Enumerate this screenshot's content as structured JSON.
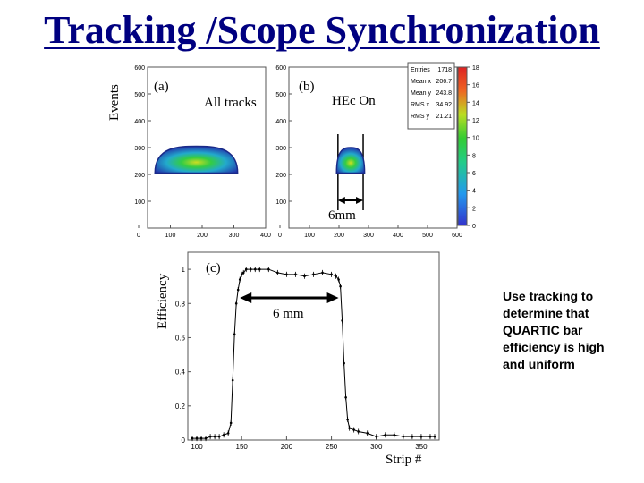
{
  "title": "Tracking /Scope Synchronization",
  "side_note": "Use tracking to determine that QUARTIC bar efficiency is high and uniform",
  "chart_data": [
    {
      "type": "heatmap",
      "panel": "(a)",
      "annotation": "All tracks",
      "ylabel": "Events",
      "xlim": [
        0,
        400
      ],
      "ylim": [
        0,
        600
      ],
      "x_ticks": [
        "0",
        "100",
        "200",
        "300",
        "400"
      ],
      "y_ticks": [
        "100",
        "200",
        "300",
        "400",
        "500",
        "600"
      ],
      "blob": {
        "x_center": 165,
        "x_half_width": 140,
        "y_base": 205,
        "y_top": 305
      }
    },
    {
      "type": "heatmap",
      "panel": "(b)",
      "annotation": "HEc On",
      "width_label": "6mm",
      "xlim": [
        0,
        600
      ],
      "ylim": [
        0,
        600
      ],
      "x_ticks": [
        "0",
        "100",
        "200",
        "300",
        "400",
        "500",
        "600"
      ],
      "y_ticks": [
        "100",
        "200",
        "300",
        "400",
        "500",
        "600"
      ],
      "band": [
        175,
        265
      ],
      "blob": {
        "x_center": 220,
        "x_half_width": 50,
        "y_base": 205,
        "y_top": 300
      },
      "stats": [
        {
          "label": "Entries",
          "value": "1718"
        },
        {
          "label": "Mean x",
          "value": "206.7"
        },
        {
          "label": "Mean y",
          "value": "243.8"
        },
        {
          "label": "RMS x",
          "value": "34.92"
        },
        {
          "label": "RMS y",
          "value": "21.21"
        }
      ],
      "colorbar_ticks": [
        "0",
        "2",
        "4",
        "6",
        "8",
        "10",
        "12",
        "14",
        "16",
        "18"
      ],
      "colorbar_range": [
        0,
        18
      ]
    },
    {
      "type": "line",
      "panel": "(c)",
      "ylabel": "Efficiency",
      "xlabel": "Strip #",
      "width_label": "6 mm",
      "xlim": [
        90,
        370
      ],
      "ylim": [
        0,
        1.1
      ],
      "x_ticks": [
        "100",
        "150",
        "200",
        "250",
        "300",
        "350"
      ],
      "y_ticks": [
        "0",
        "0.2",
        "0.4",
        "0.6",
        "0.8",
        "1"
      ],
      "x": [
        95,
        100,
        105,
        110,
        115,
        120,
        125,
        130,
        135,
        138,
        140,
        142,
        144,
        146,
        148,
        150,
        152,
        155,
        160,
        165,
        170,
        180,
        190,
        200,
        210,
        220,
        230,
        240,
        250,
        255,
        258,
        260,
        262,
        264,
        266,
        268,
        270,
        275,
        280,
        290,
        300,
        310,
        320,
        330,
        340,
        350,
        360,
        365
      ],
      "y": [
        0.01,
        0.01,
        0.01,
        0.01,
        0.02,
        0.02,
        0.02,
        0.03,
        0.04,
        0.1,
        0.35,
        0.62,
        0.8,
        0.88,
        0.94,
        0.97,
        0.98,
        1.0,
        1.0,
        1.0,
        1.0,
        1.0,
        0.98,
        0.97,
        0.97,
        0.96,
        0.97,
        0.98,
        0.97,
        0.96,
        0.94,
        0.9,
        0.7,
        0.45,
        0.25,
        0.12,
        0.07,
        0.06,
        0.05,
        0.04,
        0.02,
        0.03,
        0.03,
        0.02,
        0.02,
        0.02,
        0.02,
        0.02
      ],
      "arrow_x": [
        148,
        258
      ]
    }
  ]
}
